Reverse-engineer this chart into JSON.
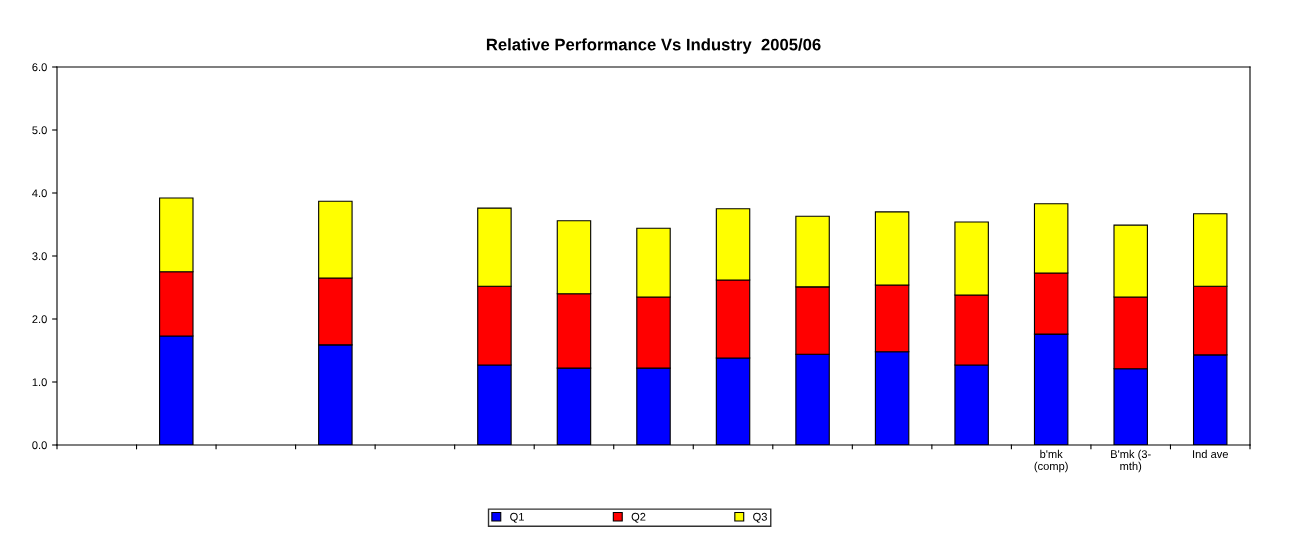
{
  "chart_data": {
    "type": "bar",
    "title": "Relative Performance Vs Industry  2005/06",
    "stacked": true,
    "categories": [
      null,
      null,
      null,
      null,
      null,
      null,
      null,
      null,
      null,
      null,
      null,
      null,
      "b'mk\n(comp)",
      "B'mk (3-\nmth)",
      "Ind ave"
    ],
    "series": [
      {
        "name": "Q1",
        "color": "#0000ff",
        "values": [
          null,
          1.73,
          null,
          1.59,
          null,
          1.27,
          1.22,
          1.22,
          1.38,
          1.44,
          1.48,
          1.27,
          1.76,
          1.21,
          1.43
        ]
      },
      {
        "name": "Q2",
        "color": "#ff0000",
        "values": [
          null,
          1.02,
          null,
          1.06,
          null,
          1.25,
          1.18,
          1.13,
          1.24,
          1.07,
          1.06,
          1.11,
          0.97,
          1.14,
          1.09
        ]
      },
      {
        "name": "Q3",
        "color": "#ffff00",
        "values": [
          null,
          1.17,
          null,
          1.22,
          null,
          1.24,
          1.16,
          1.09,
          1.13,
          1.12,
          1.16,
          1.16,
          1.1,
          1.14,
          1.15
        ]
      }
    ],
    "ylim": [
      0,
      6
    ],
    "yticks": [
      {
        "value": 0,
        "label": "0.0"
      },
      {
        "value": 1,
        "label": "1.0"
      },
      {
        "value": 2,
        "label": "2.0"
      },
      {
        "value": 3,
        "label": "3.0"
      },
      {
        "value": 4,
        "label": "4.0"
      },
      {
        "value": 5,
        "label": "5.0"
      },
      {
        "value": 6,
        "label": "6.0"
      }
    ],
    "grid": false,
    "legend": "bottom"
  }
}
